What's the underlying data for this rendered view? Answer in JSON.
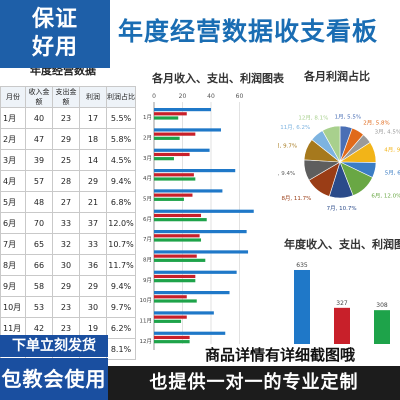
{
  "badge": {
    "line1": "保证",
    "line2": "好用"
  },
  "page_title": "年度经营数据收支看板",
  "table": {
    "title": "年度经营数据",
    "headers": [
      "月份",
      "收入金额",
      "支出金额",
      "利润",
      "利润占比"
    ],
    "rows": [
      [
        "1月",
        "40",
        "23",
        "17",
        "5.5%"
      ],
      [
        "2月",
        "47",
        "29",
        "18",
        "5.8%"
      ],
      [
        "3月",
        "39",
        "25",
        "14",
        "4.5%"
      ],
      [
        "4月",
        "57",
        "28",
        "29",
        "9.4%"
      ],
      [
        "5月",
        "48",
        "27",
        "21",
        "6.8%"
      ],
      [
        "6月",
        "70",
        "33",
        "37",
        "12.0%"
      ],
      [
        "7月",
        "65",
        "32",
        "33",
        "10.7%"
      ],
      [
        "8月",
        "66",
        "30",
        "36",
        "11.7%"
      ],
      [
        "9月",
        "58",
        "29",
        "29",
        "9.4%"
      ],
      [
        "10月",
        "53",
        "23",
        "30",
        "9.7%"
      ],
      [
        "11月",
        "42",
        "23",
        "19",
        "6.2%"
      ],
      [
        "12月",
        "",
        "",
        "",
        "8.1%"
      ]
    ]
  },
  "chart_data": [
    {
      "type": "bar",
      "orientation": "horizontal",
      "title": "各月收入、支出、利润图表",
      "categories": [
        "1月",
        "2月",
        "3月",
        "4月",
        "5月",
        "6月",
        "7月",
        "8月",
        "9月",
        "10月",
        "11月",
        "12月"
      ],
      "xlim": [
        0,
        80
      ],
      "xticks": [
        0,
        20,
        40,
        60
      ],
      "series": [
        {
          "values": [
            40,
            47,
            39,
            57,
            48,
            70,
            65,
            66,
            58,
            53,
            42,
            50
          ]
        },
        {
          "values": [
            23,
            29,
            25,
            28,
            27,
            33,
            32,
            30,
            29,
            23,
            23,
            25
          ]
        },
        {
          "values": [
            17,
            18,
            14,
            29,
            21,
            37,
            33,
            36,
            29,
            30,
            19,
            25
          ]
        }
      ],
      "colors": [
        "#1f78c8",
        "#c8202a",
        "#1ea34a"
      ]
    },
    {
      "type": "pie",
      "title": "各月利润占比",
      "categories": [
        "1月",
        "2月",
        "3月",
        "4月",
        "5月",
        "6月",
        "7月",
        "8月",
        "9月",
        "10月",
        "11月",
        "12月"
      ],
      "values": [
        5.5,
        5.8,
        4.5,
        9.4,
        6.8,
        12.0,
        10.7,
        11.7,
        9.4,
        9.7,
        6.2,
        8.1
      ],
      "labels": [
        "1月, 5.5%",
        "2月, 5.8%",
        "3月, 4.5%",
        "4月, 9.4%",
        "5月, 6.8%",
        "6月, 12.0%",
        "7月, 10.7%",
        "8月, 11.7%",
        "9月, 9.4%",
        "10月, 9.7%",
        "11月, 6.2%",
        "12月, 8.1%"
      ],
      "colors": [
        "#4a6fb5",
        "#e06a1b",
        "#9a9a9a",
        "#f2b418",
        "#3b7dc4",
        "#69a744",
        "#2b4b8a",
        "#9a3d16",
        "#5e5e5e",
        "#a6791d",
        "#7db3e0",
        "#a8d08d"
      ]
    },
    {
      "type": "bar",
      "title": "年度收入、支出、利润图表",
      "categories": [
        "收入",
        "支出",
        "利润"
      ],
      "values": [
        635,
        327,
        308
      ],
      "ylim": [
        0,
        700
      ],
      "colors": [
        "#1f78c8",
        "#c8202a",
        "#1ea34a"
      ]
    }
  ],
  "footer": {
    "left_top": "下单立刻发货",
    "left_bottom": "包教会使用",
    "right_top": "商品详情有详细截图哦",
    "right_bottom": "也提供一对一的专业定制"
  }
}
